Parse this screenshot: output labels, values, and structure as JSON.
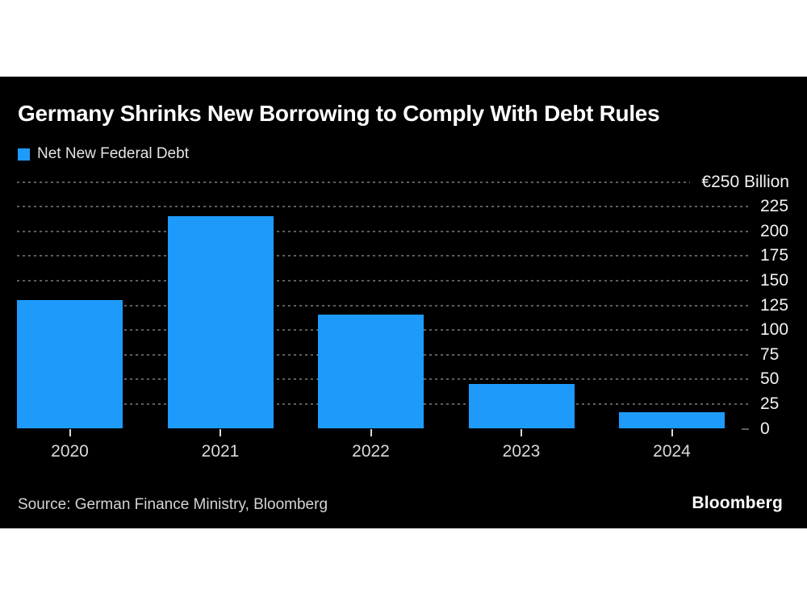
{
  "colors": {
    "page_background": "#ffffff",
    "panel_background": "#000000",
    "bar_blue": "#1e9bfa",
    "gridline_gray": "#5e5e5e",
    "text_primary": "#ffffff",
    "text_secondary": "#d9d9d9"
  },
  "header": {
    "title": "Germany Shrinks New Borrowing to Comply With Debt Rules",
    "legend": {
      "label": "Net New Federal Debt",
      "swatch_color": "#1e9bfa"
    }
  },
  "chart_data": {
    "type": "bar",
    "title": "Germany Shrinks New Borrowing to Comply With Debt Rules",
    "series_name": "Net New Federal Debt",
    "categories": [
      "2020",
      "2021",
      "2022",
      "2023",
      "2024"
    ],
    "values": [
      130,
      215,
      116,
      45,
      17
    ],
    "unit": "€ Billion",
    "xlabel": "",
    "ylabel": "€ Billion",
    "ylim": [
      0,
      250
    ],
    "yticks": [
      0,
      25,
      50,
      75,
      100,
      125,
      150,
      175,
      200,
      225,
      250
    ],
    "ytick_top_label": "€250 Billion",
    "grid": "dotted-horizontal",
    "legend_position": "top-left",
    "value_axis_side": "right",
    "bar_color": "#1e9bfa"
  },
  "footer": {
    "source": "Source: German Finance Ministry, Bloomberg",
    "logo": "Bloomberg"
  }
}
